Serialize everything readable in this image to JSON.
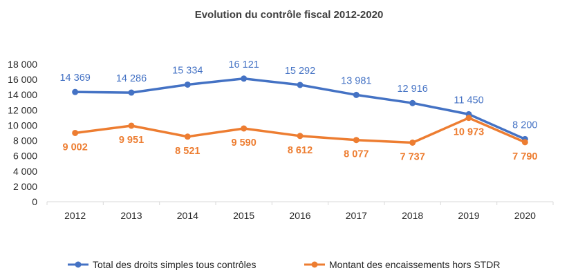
{
  "chart_data": {
    "type": "line",
    "title": "Evolution du contrôle fiscal 2012-2020",
    "xlabel": "",
    "ylabel": "",
    "categories": [
      "2012",
      "2013",
      "2014",
      "2015",
      "2016",
      "2017",
      "2018",
      "2019",
      "2020"
    ],
    "ylim": [
      0,
      18000
    ],
    "y_ticks": [
      0,
      2000,
      4000,
      6000,
      8000,
      10000,
      12000,
      14000,
      16000,
      18000
    ],
    "y_tick_labels": [
      "0",
      "2 000",
      "4 000",
      "6 000",
      "8 000",
      "10 000",
      "12 000",
      "14 000",
      "16 000",
      "18 000"
    ],
    "grid": false,
    "legend_position": "bottom",
    "series": [
      {
        "name": "Total des droits simples tous contrôles",
        "color": "#4472C4",
        "values": [
          14369,
          14286,
          15334,
          16121,
          15292,
          13981,
          12916,
          11450,
          8200
        ],
        "data_labels": [
          "14 369",
          "14 286",
          "15 334",
          "16 121",
          "15 292",
          "13 981",
          "12 916",
          "11 450",
          "8 200"
        ],
        "label_position": "above"
      },
      {
        "name": "Montant des encaissements hors STDR",
        "color": "#ED7D31",
        "values": [
          9002,
          9951,
          8521,
          9590,
          8612,
          8077,
          7737,
          10973,
          7790
        ],
        "data_labels": [
          "9 002",
          "9 951",
          "8 521",
          "9 590",
          "8 612",
          "8 077",
          "7 737",
          "10 973",
          "7 790"
        ],
        "label_position": "below"
      }
    ]
  }
}
